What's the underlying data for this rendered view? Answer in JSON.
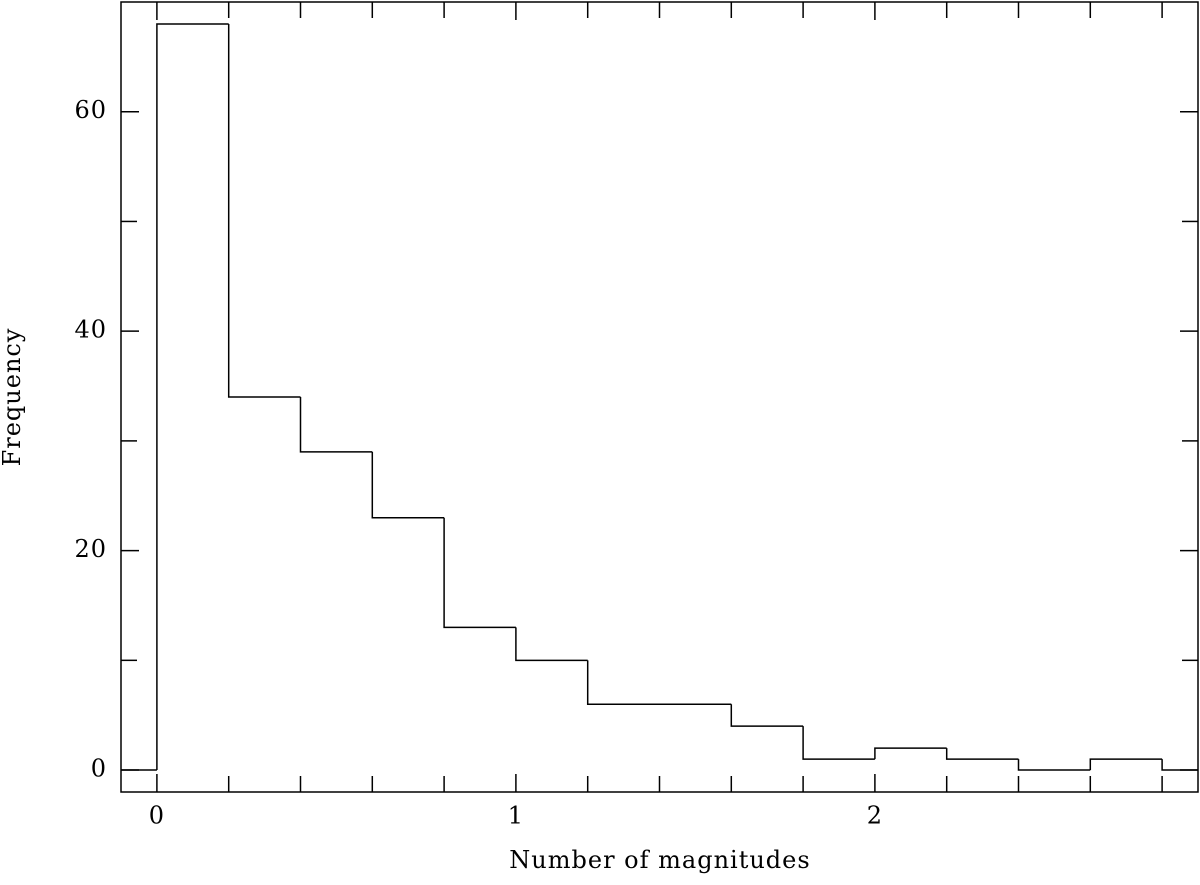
{
  "chart_data": {
    "type": "histogram",
    "xlabel": "Number of magnitudes",
    "ylabel": "Frequency",
    "bins": [
      0,
      0.2,
      0.4,
      0.6,
      0.8,
      1.0,
      1.2,
      1.4,
      1.6,
      1.8,
      2.0,
      2.2,
      2.4,
      2.6,
      2.8
    ],
    "values": [
      68,
      34,
      29,
      23,
      13,
      10,
      6,
      6,
      4,
      1,
      2,
      1,
      0,
      1
    ],
    "color": "#000000",
    "xlim": [
      -0.1,
      2.9
    ],
    "ylim": [
      -2,
      70
    ],
    "xticks": [
      0,
      1,
      2
    ],
    "yticks": [
      0,
      20,
      40,
      60
    ],
    "xminorticks": [
      0.2,
      0.4,
      0.6,
      0.8,
      1.2,
      1.4,
      1.6,
      1.8,
      2.2,
      2.4,
      2.6,
      2.8
    ],
    "yminorticks": [
      10,
      30,
      50
    ],
    "grid": false
  }
}
